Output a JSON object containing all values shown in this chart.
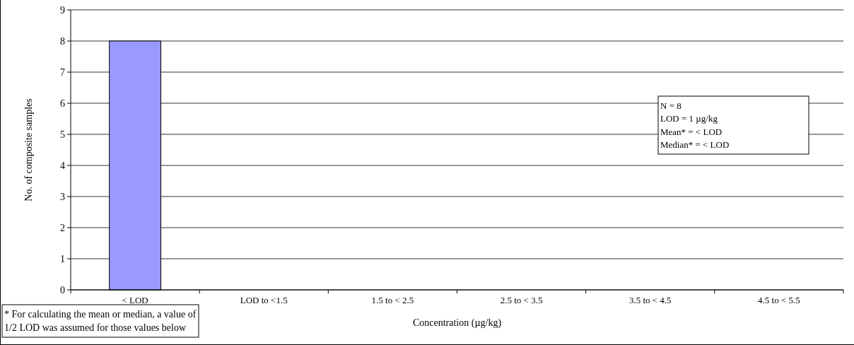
{
  "chart_data": {
    "type": "bar",
    "xlabel": "Concentration (µg/kg)",
    "ylabel": "No. of composite samples",
    "categories": [
      "< LOD",
      "LOD to <1.5",
      "1.5 to < 2.5",
      "2.5 to < 3.5",
      "3.5 to < 4.5",
      "4.5 to < 5.5"
    ],
    "values": [
      8,
      0,
      0,
      0,
      0,
      0
    ],
    "color": "#9999ff",
    "ylim": [
      0,
      9
    ],
    "yticks": [
      0,
      1,
      2,
      3,
      4,
      5,
      6,
      7,
      8,
      9
    ],
    "grid": "y",
    "annotations": [
      "N = 8\nLOD  = 1 µg/kg\nMean*  = < LOD\nMedian*  = < LOD",
      "* For calculating the mean or median, a value of\n1/2 LOD was assumed for those values below"
    ]
  }
}
